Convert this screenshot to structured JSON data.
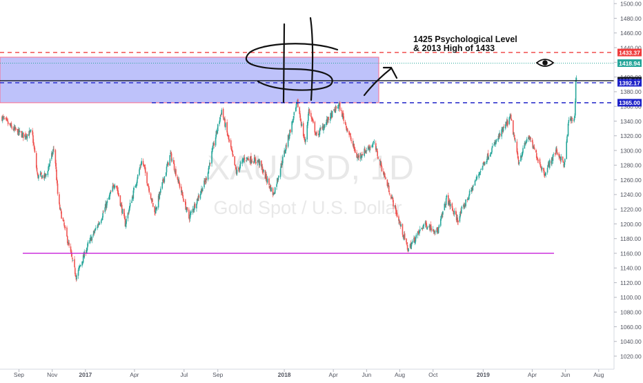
{
  "chart_data": {
    "type": "candlestick",
    "symbol_watermark": "XAUUSD, 1D",
    "description_watermark": "Gold Spot / U.S. Dollar",
    "annotation_text": {
      "line1": "1425 Psychological Level",
      "line2": "& 2013 High of 1433"
    },
    "x_axis_labels": [
      "Sep",
      "Nov",
      "2017",
      "Apr",
      "Jul",
      "Sep",
      "2018",
      "Apr",
      "Jun",
      "Aug",
      "Oct",
      "2019",
      "Apr",
      "Jun",
      "Aug"
    ],
    "y_axis": {
      "min": 1005,
      "max": 1503,
      "step": 20,
      "tick_labels": [
        "1020.00",
        "1040.00",
        "1060.00",
        "1080.00",
        "1100.00",
        "1120.00",
        "1140.00",
        "1160.00",
        "1180.00",
        "1200.00",
        "1220.00",
        "1240.00",
        "1260.00",
        "1280.00",
        "1300.00",
        "1320.00",
        "1340.00",
        "1360.00",
        "1380.00",
        "1400.00",
        "1420.00",
        "1440.00",
        "1460.00",
        "1480.00",
        "1500.00"
      ]
    },
    "price_badges": [
      {
        "label": "1433.37",
        "value": 1433.37,
        "bg": "#ef3d3d",
        "fg": "#ffffff"
      },
      {
        "label": "1418.94",
        "value": 1418.94,
        "bg": "#26a69a",
        "fg": "#ffffff"
      },
      {
        "label": "1395.00",
        "value": 1395.0,
        "bg": "#131722",
        "fg": "#ffffff"
      },
      {
        "label": "1392.17",
        "value": 1392.17,
        "bg": "#1e22c8",
        "fg": "#ffffff"
      },
      {
        "label": "1365.00",
        "value": 1365.0,
        "bg": "#1e22c8",
        "fg": "#ffffff"
      }
    ],
    "horizontal_levels": [
      {
        "value": 1433.37,
        "style": "dashed",
        "color": "#ef3d3d"
      },
      {
        "value": 1418.94,
        "style": "dotted",
        "color": "#26a69a"
      },
      {
        "value": 1395.0,
        "style": "solid",
        "color": "#131722"
      },
      {
        "value": 1392.17,
        "style": "dashed",
        "color": "#1e22c8"
      },
      {
        "value": 1365.0,
        "style": "dashed",
        "color": "#1e22c8"
      },
      {
        "value": 1160.0,
        "style": "solid",
        "color": "#c71fd9"
      }
    ],
    "resistance_zone": {
      "from": 1365,
      "to": 1427,
      "fill": "rgba(110,120,245,0.45)",
      "stroke": "#ff6b8a"
    },
    "price_path_anchors": [
      {
        "date": "2016-08-01",
        "price": 1345
      },
      {
        "date": "2016-08-20",
        "price": 1330
      },
      {
        "date": "2016-09-10",
        "price": 1320
      },
      {
        "date": "2016-09-25",
        "price": 1325
      },
      {
        "date": "2016-10-05",
        "price": 1265
      },
      {
        "date": "2016-10-20",
        "price": 1265
      },
      {
        "date": "2016-11-05",
        "price": 1305
      },
      {
        "date": "2016-11-12",
        "price": 1230
      },
      {
        "date": "2016-11-30",
        "price": 1175
      },
      {
        "date": "2016-12-15",
        "price": 1128
      },
      {
        "date": "2017-01-05",
        "price": 1170
      },
      {
        "date": "2017-01-31",
        "price": 1210
      },
      {
        "date": "2017-02-25",
        "price": 1258
      },
      {
        "date": "2017-03-15",
        "price": 1200
      },
      {
        "date": "2017-04-15",
        "price": 1288
      },
      {
        "date": "2017-05-08",
        "price": 1215
      },
      {
        "date": "2017-06-06",
        "price": 1295
      },
      {
        "date": "2017-07-10",
        "price": 1208
      },
      {
        "date": "2017-08-10",
        "price": 1260
      },
      {
        "date": "2017-09-08",
        "price": 1355
      },
      {
        "date": "2017-10-05",
        "price": 1270
      },
      {
        "date": "2017-10-20",
        "price": 1290
      },
      {
        "date": "2017-11-15",
        "price": 1285
      },
      {
        "date": "2017-12-12",
        "price": 1240
      },
      {
        "date": "2018-01-25",
        "price": 1365
      },
      {
        "date": "2018-02-08",
        "price": 1310
      },
      {
        "date": "2018-02-15",
        "price": 1355
      },
      {
        "date": "2018-03-01",
        "price": 1320
      },
      {
        "date": "2018-04-11",
        "price": 1362
      },
      {
        "date": "2018-05-15",
        "price": 1290
      },
      {
        "date": "2018-06-14",
        "price": 1310
      },
      {
        "date": "2018-07-15",
        "price": 1240
      },
      {
        "date": "2018-08-16",
        "price": 1165
      },
      {
        "date": "2018-09-15",
        "price": 1200
      },
      {
        "date": "2018-10-10",
        "price": 1190
      },
      {
        "date": "2018-10-26",
        "price": 1235
      },
      {
        "date": "2018-11-15",
        "price": 1205
      },
      {
        "date": "2018-12-31",
        "price": 1280
      },
      {
        "date": "2019-01-31",
        "price": 1320
      },
      {
        "date": "2019-02-20",
        "price": 1345
      },
      {
        "date": "2019-03-07",
        "price": 1285
      },
      {
        "date": "2019-03-25",
        "price": 1320
      },
      {
        "date": "2019-04-23",
        "price": 1268
      },
      {
        "date": "2019-05-15",
        "price": 1300
      },
      {
        "date": "2019-05-30",
        "price": 1280
      },
      {
        "date": "2019-06-07",
        "price": 1340
      },
      {
        "date": "2019-06-18",
        "price": 1345
      },
      {
        "date": "2019-06-20",
        "price": 1395
      },
      {
        "date": "2019-06-24",
        "price": 1418.94
      }
    ],
    "candle_style": {
      "up": "#26a69a",
      "down": "#ef5350"
    },
    "legend": "none",
    "grid": false
  }
}
